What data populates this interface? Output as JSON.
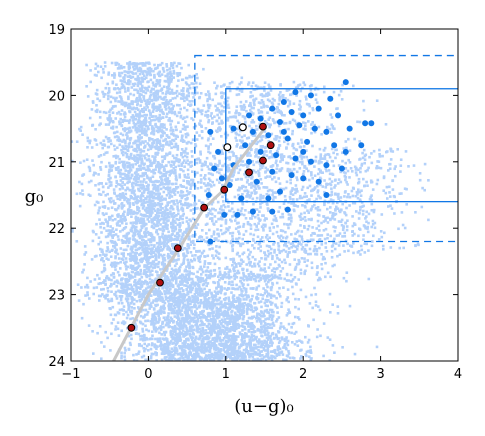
{
  "chart_data": {
    "type": "scatter",
    "xlabel": "(u−g)₀",
    "ylabel": "g₀",
    "xlim": [
      -1,
      4
    ],
    "ylim": [
      24,
      19
    ],
    "y_axis_inverted": true,
    "x_ticks": [
      "−1",
      "0",
      "1",
      "2",
      "3",
      "4"
    ],
    "y_ticks": [
      "19",
      "20",
      "21",
      "22",
      "23",
      "24"
    ],
    "grid": false,
    "legend": "none",
    "colors": {
      "background_stars": "#b3d1fa",
      "selected_stars": "#1177e6",
      "selection_box": "#1177e6",
      "track_line": "#c8c8c8",
      "red_markers": "#b01010",
      "white_markers": "#ffffff"
    },
    "boxes": [
      {
        "name": "inner",
        "style": "solid",
        "x_range": [
          1.0,
          4.0
        ],
        "y_range": [
          19.9,
          21.6
        ]
      },
      {
        "name": "outer",
        "style": "dashed",
        "x_range": [
          0.6,
          4.0
        ],
        "y_range": [
          19.4,
          22.2
        ]
      }
    ],
    "track_line": [
      [
        -0.45,
        24.0
      ],
      [
        0.0,
        23.0
      ],
      [
        0.4,
        22.3
      ],
      [
        0.72,
        21.7
      ],
      [
        0.95,
        21.45
      ],
      [
        1.1,
        21.1
      ],
      [
        1.3,
        20.8
      ],
      [
        1.5,
        20.5
      ]
    ],
    "red_markers": [
      {
        "x": -0.22,
        "y": 23.5
      },
      {
        "x": 0.15,
        "y": 22.82
      },
      {
        "x": 0.38,
        "y": 22.3
      },
      {
        "x": 0.72,
        "y": 21.69
      },
      {
        "x": 0.98,
        "y": 21.42
      },
      {
        "x": 1.3,
        "y": 21.16
      },
      {
        "x": 1.48,
        "y": 20.98
      },
      {
        "x": 1.58,
        "y": 20.75
      },
      {
        "x": 1.48,
        "y": 20.47
      }
    ],
    "white_markers": [
      {
        "x": 1.22,
        "y": 20.48
      },
      {
        "x": 1.02,
        "y": 20.78
      }
    ],
    "selected_stars": [
      {
        "x": 2.55,
        "y": 19.8
      },
      {
        "x": 1.9,
        "y": 19.95
      },
      {
        "x": 2.1,
        "y": 20.0
      },
      {
        "x": 1.75,
        "y": 20.1
      },
      {
        "x": 2.35,
        "y": 20.05
      },
      {
        "x": 1.6,
        "y": 20.2
      },
      {
        "x": 1.85,
        "y": 20.25
      },
      {
        "x": 2.0,
        "y": 20.3
      },
      {
        "x": 2.2,
        "y": 20.2
      },
      {
        "x": 2.45,
        "y": 20.3
      },
      {
        "x": 1.3,
        "y": 20.3
      },
      {
        "x": 1.45,
        "y": 20.35
      },
      {
        "x": 1.7,
        "y": 20.4
      },
      {
        "x": 1.95,
        "y": 20.45
      },
      {
        "x": 2.15,
        "y": 20.5
      },
      {
        "x": 2.3,
        "y": 20.55
      },
      {
        "x": 2.6,
        "y": 20.5
      },
      {
        "x": 2.8,
        "y": 20.42
      },
      {
        "x": 2.88,
        "y": 20.42
      },
      {
        "x": 1.1,
        "y": 20.5
      },
      {
        "x": 1.35,
        "y": 20.55
      },
      {
        "x": 1.55,
        "y": 20.6
      },
      {
        "x": 1.8,
        "y": 20.65
      },
      {
        "x": 2.05,
        "y": 20.7
      },
      {
        "x": 2.4,
        "y": 20.75
      },
      {
        "x": 2.55,
        "y": 20.85
      },
      {
        "x": 1.25,
        "y": 20.75
      },
      {
        "x": 1.45,
        "y": 20.85
      },
      {
        "x": 1.65,
        "y": 20.9
      },
      {
        "x": 1.9,
        "y": 20.95
      },
      {
        "x": 2.1,
        "y": 21.0
      },
      {
        "x": 2.3,
        "y": 21.05
      },
      {
        "x": 2.75,
        "y": 20.75
      },
      {
        "x": 1.1,
        "y": 21.05
      },
      {
        "x": 1.3,
        "y": 21.0
      },
      {
        "x": 1.6,
        "y": 21.15
      },
      {
        "x": 1.85,
        "y": 21.2
      },
      {
        "x": 2.0,
        "y": 21.25
      },
      {
        "x": 2.2,
        "y": 21.3
      },
      {
        "x": 1.05,
        "y": 21.35
      },
      {
        "x": 1.4,
        "y": 21.3
      },
      {
        "x": 1.7,
        "y": 21.45
      },
      {
        "x": 2.3,
        "y": 21.5
      },
      {
        "x": 1.2,
        "y": 21.55
      },
      {
        "x": 1.55,
        "y": 21.55
      },
      {
        "x": 0.8,
        "y": 20.55
      },
      {
        "x": 0.9,
        "y": 20.85
      },
      {
        "x": 0.85,
        "y": 21.1
      },
      {
        "x": 0.95,
        "y": 21.25
      },
      {
        "x": 0.78,
        "y": 21.5
      },
      {
        "x": 0.98,
        "y": 21.8
      },
      {
        "x": 1.15,
        "y": 21.8
      },
      {
        "x": 1.35,
        "y": 21.75
      },
      {
        "x": 1.6,
        "y": 21.75
      },
      {
        "x": 1.8,
        "y": 21.72
      },
      {
        "x": 0.8,
        "y": 22.2
      },
      {
        "x": 2.0,
        "y": 20.85
      },
      {
        "x": 2.5,
        "y": 21.1
      },
      {
        "x": 1.75,
        "y": 20.55
      }
    ]
  }
}
